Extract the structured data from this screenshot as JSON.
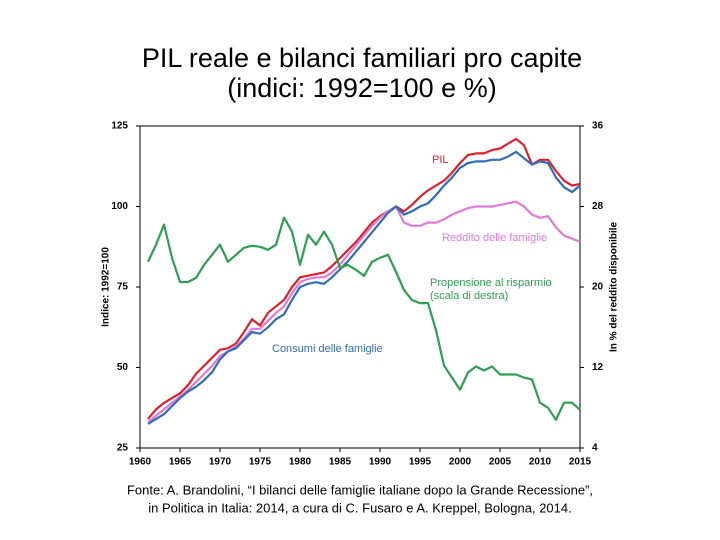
{
  "chart_data": {
    "type": "line",
    "title": "PIL reale e bilanci familiari pro capite",
    "subtitle": "(indici: 1992=100 e %)",
    "y_label": "Indice: 1992=100",
    "y2_label": "In % del reddito disponibile",
    "source": [
      "Fonte: A. Brandolini, “I bilanci delle famiglie italiane dopo la Grande Recessione”,",
      "in Politica in Italia: 2014, a cura di C. Fusaro e A. Kreppel, Bologna, 2014."
    ],
    "x": [
      1961,
      1962,
      1963,
      1964,
      1965,
      1966,
      1967,
      1968,
      1969,
      1970,
      1971,
      1972,
      1973,
      1974,
      1975,
      1976,
      1977,
      1978,
      1979,
      1980,
      1981,
      1982,
      1983,
      1984,
      1985,
      1986,
      1987,
      1988,
      1989,
      1990,
      1991,
      1992,
      1993,
      1994,
      1995,
      1996,
      1997,
      1998,
      1999,
      2000,
      2001,
      2002,
      2003,
      2004,
      2005,
      2006,
      2007,
      2008,
      2009,
      2010,
      2011,
      2012,
      2013,
      2014,
      2015
    ],
    "xlim": [
      1960,
      2015
    ],
    "xticks": [
      1960,
      1965,
      1970,
      1975,
      1980,
      1985,
      1990,
      1995,
      2000,
      2005,
      2010,
      2015
    ],
    "ylim": [
      25,
      125
    ],
    "yticks": [
      25,
      50,
      75,
      100,
      125
    ],
    "y2lim": [
      4,
      36
    ],
    "y2ticks": [
      4,
      12,
      20,
      28,
      36
    ],
    "grid": false,
    "series": [
      {
        "name": "PIL",
        "color": "#e0202a",
        "values": [
          34,
          37,
          39,
          40.5,
          42,
          44.5,
          48,
          50.5,
          53,
          55.5,
          56,
          57.5,
          61,
          65,
          63,
          67,
          69,
          71,
          75,
          78,
          78.5,
          79,
          79.5,
          81.5,
          84,
          86.5,
          89,
          92,
          95,
          97,
          98.5,
          100,
          98.5,
          100.5,
          103,
          105,
          106.5,
          108,
          110.5,
          113.5,
          116,
          116.5,
          116.5,
          117.5,
          118,
          119.5,
          121,
          119,
          113,
          114.5,
          114.5,
          111,
          108,
          106.5,
          107
        ]
      },
      {
        "name": "Reddito delle famiglie",
        "color": "#e07ad8",
        "values": [
          33,
          35,
          37,
          39,
          41,
          43,
          45.5,
          48,
          50.5,
          53.5,
          55,
          56.5,
          59,
          62,
          62,
          64.5,
          67,
          69,
          73,
          76.5,
          77.5,
          78,
          78,
          79.5,
          82,
          85,
          88,
          91,
          94,
          96.5,
          98.5,
          100,
          95,
          94,
          94,
          95,
          95,
          96,
          97.5,
          98.5,
          99.5,
          100,
          100,
          100,
          100.5,
          101,
          101.5,
          100,
          97.5,
          96.5,
          97,
          93.5,
          91,
          90,
          89
        ]
      },
      {
        "name": "Consumi delle famiglie",
        "color": "#2f6eb5",
        "values": [
          32.5,
          34,
          35.5,
          38,
          40.5,
          42.5,
          44,
          46,
          48.5,
          52.5,
          55,
          56,
          58.5,
          61,
          60.5,
          62.5,
          65,
          66.5,
          71,
          75,
          76,
          76.5,
          76,
          78,
          80.5,
          83,
          86,
          89,
          92,
          95,
          98,
          100,
          97.5,
          98.5,
          100,
          101,
          103.5,
          106.5,
          109,
          112,
          113.5,
          114,
          114,
          114.5,
          114.5,
          115.5,
          117,
          115,
          113,
          114,
          113.5,
          109,
          106,
          104.5,
          106.5
        ]
      },
      {
        "name": "Propensione al risparmio",
        "note": "(scala di destra)",
        "color": "#2ca050",
        "axis": "y2",
        "values": [
          22.5,
          24.2,
          26.2,
          22.9,
          20.5,
          20.5,
          20.9,
          22.2,
          23.2,
          24.2,
          22.5,
          23.2,
          23.9,
          24.1,
          24.0,
          23.7,
          24.2,
          26.9,
          25.5,
          22.2,
          25.2,
          24.2,
          25.5,
          24.2,
          21.9,
          22.2,
          21.7,
          21.1,
          22.5,
          22.9,
          23.2,
          21.5,
          19.7,
          18.7,
          18.4,
          18.4,
          15.7,
          12.2,
          11.0,
          9.8,
          11.5,
          12.1,
          11.7,
          12.1,
          11.3,
          11.3,
          11.3,
          11.0,
          10.8,
          8.5,
          8.0,
          6.8,
          8.5,
          8.5,
          7.8
        ]
      }
    ]
  }
}
